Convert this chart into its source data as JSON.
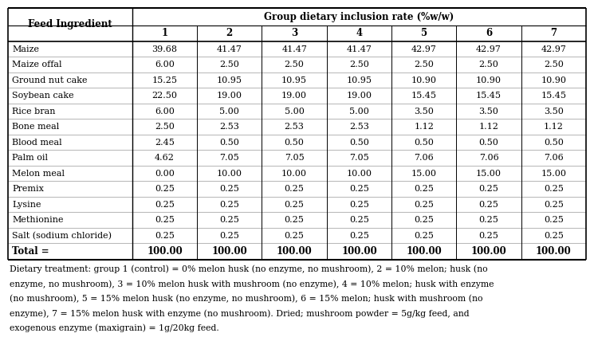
{
  "col_header_row1_left": "Feed Ingredient",
  "col_header_row1_right": "Group dietary inclusion rate (%w/w)",
  "col_header_row2": [
    "1",
    "2",
    "3",
    "4",
    "5",
    "6",
    "7"
  ],
  "rows": [
    [
      "Maize",
      "39.68",
      "41.47",
      "41.47",
      "41.47",
      "42.97",
      "42.97",
      "42.97"
    ],
    [
      "Maize offal",
      "6.00",
      "2.50",
      "2.50",
      "2.50",
      "2.50",
      "2.50",
      "2.50"
    ],
    [
      "Ground nut cake",
      "15.25",
      "10.95",
      "10.95",
      "10.95",
      "10.90",
      "10.90",
      "10.90"
    ],
    [
      "Soybean cake",
      "22.50",
      "19.00",
      "19.00",
      "19.00",
      "15.45",
      "15.45",
      "15.45"
    ],
    [
      "Rice bran",
      "6.00",
      "5.00",
      "5.00",
      "5.00",
      "3.50",
      "3.50",
      "3.50"
    ],
    [
      "Bone meal",
      "2.50",
      "2.53",
      "2.53",
      "2.53",
      "1.12",
      "1.12",
      "1.12"
    ],
    [
      "Blood meal",
      "2.45",
      "0.50",
      "0.50",
      "0.50",
      "0.50",
      "0.50",
      "0.50"
    ],
    [
      "Palm oil",
      "4.62",
      "7.05",
      "7.05",
      "7.05",
      "7.06",
      "7.06",
      "7.06"
    ],
    [
      "Melon meal",
      "0.00",
      "10.00",
      "10.00",
      "10.00",
      "15.00",
      "15.00",
      "15.00"
    ],
    [
      "Premix",
      "0.25",
      "0.25",
      "0.25",
      "0.25",
      "0.25",
      "0.25",
      "0.25"
    ],
    [
      "Lysine",
      "0.25",
      "0.25",
      "0.25",
      "0.25",
      "0.25",
      "0.25",
      "0.25"
    ],
    [
      "Methionine",
      "0.25",
      "0.25",
      "0.25",
      "0.25",
      "0.25",
      "0.25",
      "0.25"
    ],
    [
      "Salt (sodium chloride)",
      "0.25",
      "0.25",
      "0.25",
      "0.25",
      "0.25",
      "0.25",
      "0.25"
    ]
  ],
  "total_row": [
    "Total =",
    "100.00",
    "100.00",
    "100.00",
    "100.00",
    "100.00",
    "100.00",
    "100.00"
  ],
  "footnote_lines": [
    "Dietary treatment: group 1 (control) = 0% melon husk (no enzyme, no mushroom), 2 = 10% melon; husk (no",
    "enzyme, no mushroom), 3 = 10% melon husk with mushroom (no enzyme), 4 = 10% melon; husk with enzyme",
    "(no mushroom), 5 = 15% melon husk (no enzyme, no mushroom), 6 = 15% melon; husk with mushroom (no",
    "enzyme), 7 = 15% melon husk with enzyme (no mushroom). Dried; mushroom powder = 5g/kg feed, and",
    "exogenous enzyme (maxigrain) = 1g/20kg feed."
  ],
  "font_family": "serif",
  "fs_header": 8.5,
  "fs_data": 8.0,
  "fs_footnote": 7.8,
  "bg_color": "#ffffff"
}
